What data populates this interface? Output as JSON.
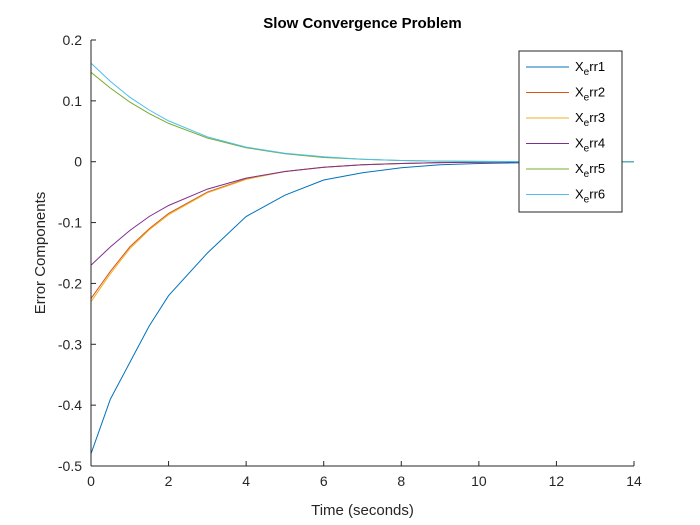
{
  "chart_data": {
    "type": "line",
    "title": "Slow Convergence Problem",
    "xlabel": "Time (seconds)",
    "ylabel": "Error Components",
    "xlim": [
      0,
      14
    ],
    "ylim": [
      -0.5,
      0.2
    ],
    "xticks": [
      0,
      2,
      4,
      6,
      8,
      10,
      12,
      14
    ],
    "yticks": [
      -0.5,
      -0.4,
      -0.3,
      -0.2,
      -0.1,
      0,
      0.1,
      0.2
    ],
    "xtick_labels": [
      "0",
      "2",
      "4",
      "6",
      "8",
      "10",
      "12",
      "14"
    ],
    "ytick_labels": [
      "-0.5",
      "-0.4",
      "-0.3",
      "-0.2",
      "-0.1",
      "0",
      "0.1",
      "0.2"
    ],
    "grid": false,
    "legend_position": "top-right",
    "series": [
      {
        "name": "X_err1",
        "base": "X",
        "sub": "e",
        "rest": "rr1",
        "color": "#0072BD",
        "x": [
          0,
          0.5,
          1,
          1.5,
          2,
          3,
          4,
          5,
          6,
          7,
          8,
          9,
          10,
          12,
          14
        ],
        "y": [
          -0.48,
          -0.39,
          -0.33,
          -0.27,
          -0.22,
          -0.15,
          -0.09,
          -0.055,
          -0.03,
          -0.018,
          -0.01,
          -0.005,
          -0.003,
          -0.001,
          0
        ]
      },
      {
        "name": "X_err2",
        "base": "X",
        "sub": "e",
        "rest": "rr2",
        "color": "#D95319",
        "x": [
          0,
          0.5,
          1,
          1.5,
          2,
          3,
          4,
          5,
          6,
          7,
          8,
          9,
          10,
          12,
          14
        ],
        "y": [
          -0.225,
          -0.18,
          -0.14,
          -0.11,
          -0.085,
          -0.05,
          -0.028,
          -0.016,
          -0.009,
          -0.005,
          -0.003,
          -0.0015,
          -0.0008,
          -0.0002,
          0
        ]
      },
      {
        "name": "X_err3",
        "base": "X",
        "sub": "e",
        "rest": "rr3",
        "color": "#EDB120",
        "x": [
          0,
          0.5,
          1,
          1.5,
          2,
          3,
          4,
          5,
          6,
          7,
          8,
          9,
          10,
          12,
          14
        ],
        "y": [
          -0.23,
          -0.184,
          -0.143,
          -0.112,
          -0.087,
          -0.051,
          -0.029,
          -0.016,
          -0.009,
          -0.005,
          -0.003,
          -0.0015,
          -0.0008,
          -0.0002,
          0
        ]
      },
      {
        "name": "X_err4",
        "base": "X",
        "sub": "e",
        "rest": "rr4",
        "color": "#7E2F8E",
        "x": [
          0,
          0.5,
          1,
          1.5,
          2,
          3,
          4,
          5,
          6,
          7,
          8,
          9,
          10,
          12,
          14
        ],
        "y": [
          -0.17,
          -0.14,
          -0.113,
          -0.09,
          -0.072,
          -0.045,
          -0.027,
          -0.016,
          -0.009,
          -0.005,
          -0.003,
          -0.0015,
          -0.0008,
          -0.0002,
          0
        ]
      },
      {
        "name": "X_err5",
        "base": "X",
        "sub": "e",
        "rest": "rr5",
        "color": "#77AC30",
        "x": [
          0,
          0.5,
          1,
          1.5,
          2,
          3,
          4,
          5,
          6,
          7,
          8,
          9,
          10,
          12,
          14
        ],
        "y": [
          0.147,
          0.121,
          0.098,
          0.079,
          0.063,
          0.039,
          0.023,
          0.013,
          0.007,
          0.004,
          0.002,
          0.001,
          0.0005,
          0.0001,
          0
        ]
      },
      {
        "name": "X_err6",
        "base": "X",
        "sub": "e",
        "rest": "rr6",
        "color": "#4DBEEE",
        "x": [
          0,
          0.5,
          1,
          1.5,
          2,
          3,
          4,
          5,
          6,
          7,
          8,
          9,
          10,
          12,
          14
        ],
        "y": [
          0.162,
          0.132,
          0.106,
          0.085,
          0.067,
          0.041,
          0.024,
          0.014,
          0.008,
          0.004,
          0.002,
          0.001,
          0.0005,
          0.0001,
          0
        ]
      }
    ]
  }
}
